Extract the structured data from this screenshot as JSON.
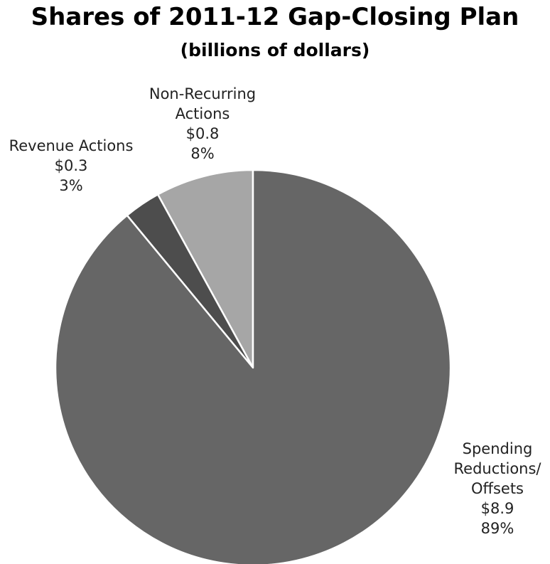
{
  "chart_data": {
    "type": "pie",
    "title": "Shares of 2011-12 Gap-Closing Plan",
    "subtitle": "(billions of dollars)",
    "slices": [
      {
        "label_lines": [
          "Non-Recurring",
          "Actions"
        ],
        "value_text": "$0.8",
        "percent_text": "8%",
        "value": 0.8,
        "percent": 8,
        "color": "#a6a6a6"
      },
      {
        "label_lines": [
          "Revenue Actions"
        ],
        "value_text": "$0.3",
        "percent_text": "3%",
        "value": 0.3,
        "percent": 3,
        "color": "#4d4d4d"
      },
      {
        "label_lines": [
          "Spending",
          "Reductions/",
          "Offsets"
        ],
        "value_text": "$8.9",
        "percent_text": "89%",
        "value": 8.9,
        "percent": 89,
        "color": "#666666"
      }
    ]
  }
}
